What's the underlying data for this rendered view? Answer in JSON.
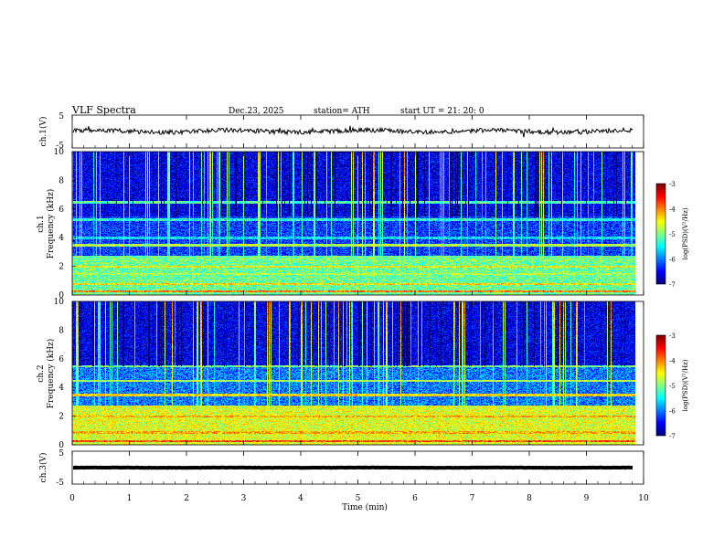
{
  "header": {
    "title": "VLF  Spectra",
    "date": "Dec.23, 2025",
    "station": "station= ATH",
    "start": "start  UT  =   21: 20: 0"
  },
  "chart_data": [
    {
      "type": "line",
      "name": "ch1-waveform",
      "ylabel": "ch.1(V)",
      "ylim": [
        -5,
        5
      ],
      "yticks": [
        "5",
        "-5"
      ],
      "xlim": [
        0,
        10
      ],
      "mean_value": 0.1,
      "color": "#000000"
    },
    {
      "type": "heatmap",
      "name": "ch1-spectrogram",
      "ylabel": "Frequency  (kHz)",
      "ylabel_channel": "ch.1",
      "ylim": [
        0,
        10
      ],
      "yticks": [
        "0",
        "2",
        "4",
        "6",
        "8",
        "10"
      ],
      "xlim": [
        0,
        9.85
      ],
      "bands": [
        {
          "freq_khz": 0.3,
          "level": 0.75
        },
        {
          "freq_khz": 0.8,
          "level": 0.65
        },
        {
          "freq_khz": 1.5,
          "level": 0.55
        },
        {
          "freq_khz": 2.0,
          "level": 0.62
        },
        {
          "freq_khz": 2.5,
          "level": 0.5
        },
        {
          "freq_khz": 3.5,
          "level": 0.55
        },
        {
          "freq_khz": 4.0,
          "level": 0.35
        },
        {
          "freq_khz": 5.3,
          "level": 0.4
        },
        {
          "freq_khz": 6.5,
          "level": 0.45
        }
      ],
      "colorbar": {
        "label": "log(PSD)(V²/Hz)",
        "range": [
          -7,
          -3
        ],
        "ticks": [
          "-3",
          "-4",
          "-5",
          "-6",
          "-7"
        ]
      }
    },
    {
      "type": "heatmap",
      "name": "ch2-spectrogram",
      "ylabel": "Frequency  (kHz)",
      "ylabel_channel": "ch.2",
      "ylim": [
        0,
        10
      ],
      "yticks": [
        "0",
        "2",
        "4",
        "6",
        "8",
        "10"
      ],
      "xlim": [
        0,
        9.85
      ],
      "bands": [
        {
          "freq_khz": 0.3,
          "level": 0.8
        },
        {
          "freq_khz": 0.9,
          "level": 0.7
        },
        {
          "freq_khz": 1.5,
          "level": 0.6
        },
        {
          "freq_khz": 2.0,
          "level": 0.7
        },
        {
          "freq_khz": 3.5,
          "level": 0.65
        },
        {
          "freq_khz": 4.5,
          "level": 0.55
        },
        {
          "freq_khz": 5.5,
          "level": 0.5
        }
      ],
      "colorbar": {
        "label": "log(PSD)(V²/Hz)",
        "range": [
          -7,
          -3
        ],
        "ticks": [
          "-3",
          "-4",
          "-5",
          "-6",
          "-7"
        ]
      }
    },
    {
      "type": "line",
      "name": "ch3-waveform",
      "ylabel": "ch.3(V)",
      "ylim": [
        -5,
        5
      ],
      "yticks": [
        "5",
        "-5"
      ],
      "xlim": [
        0,
        10
      ],
      "mean_value": 0,
      "color": "#000000"
    }
  ],
  "x_axis": {
    "label": "Time  (min)",
    "range": [
      0,
      10
    ],
    "ticks": [
      "0",
      "1",
      "2",
      "3",
      "4",
      "5",
      "6",
      "7",
      "8",
      "9",
      "10"
    ]
  }
}
